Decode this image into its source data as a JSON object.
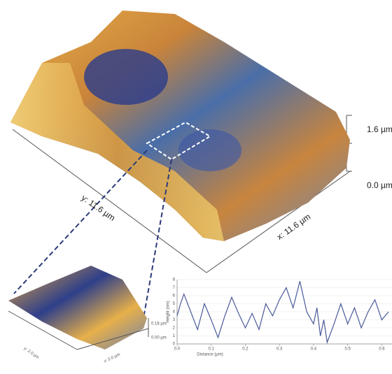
{
  "labels": {
    "z_top": "1.6 µm",
    "z_bottom": "0.0 µm",
    "y_size": "y: 11.6 µm",
    "x_size": "x: 11.6 µm",
    "inset_z_top": "0.18 µm",
    "inset_z_bottom": "0.00 µm",
    "inset_y_size": "y: 2.0 µm",
    "inset_x_size": "x: 2.0 µm"
  },
  "chart_data": {
    "type": "line",
    "xlabel": "Distance (µm)",
    "ylabel": "Height (nm)",
    "color": "#4a5a9a",
    "x": [
      0,
      0.01,
      0.02,
      0.04,
      0.06,
      0.08,
      0.1,
      0.12,
      0.14,
      0.16,
      0.18,
      0.2,
      0.22,
      0.24,
      0.26,
      0.28,
      0.3,
      0.32,
      0.34,
      0.36,
      0.38,
      0.4,
      0.41,
      0.42,
      0.43,
      0.44,
      0.46,
      0.48,
      0.5,
      0.52,
      0.54,
      0.56,
      0.58,
      0.6,
      0.62
    ],
    "values": [
      3.5,
      5,
      6.2,
      4,
      1.8,
      5,
      3,
      0.8,
      3.5,
      5.8,
      3.8,
      2,
      3.8,
      1.8,
      5,
      3.5,
      5.5,
      7,
      4.5,
      7.8,
      4,
      2.5,
      4.5,
      1,
      3,
      0.2,
      2.5,
      5,
      2.5,
      4.5,
      2,
      4,
      5.5,
      3,
      4
    ],
    "xlim": [
      0,
      0.63
    ],
    "ylim": [
      0,
      8
    ],
    "xticks": [
      {
        "value": 0,
        "label": "0.0"
      },
      0.1,
      0.2,
      0.3,
      0.4,
      0.5,
      0.6
    ],
    "yticks": [
      0,
      1,
      2,
      3,
      4,
      5,
      6,
      7,
      8
    ],
    "grid": true
  }
}
